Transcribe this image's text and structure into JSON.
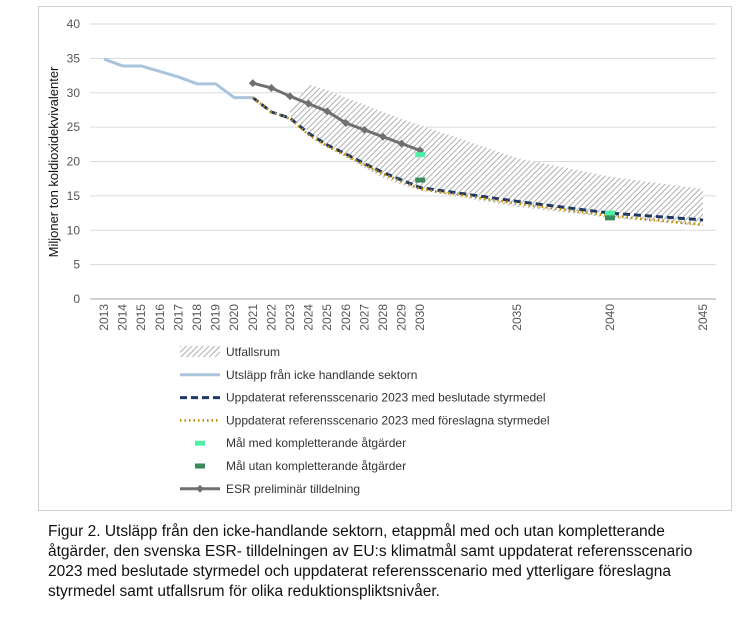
{
  "chart_data": {
    "type": "line",
    "ylabel": "Miljoner ton koldioxidekvivalenter",
    "ylim": [
      0,
      40
    ],
    "yticks": [
      0,
      5,
      10,
      15,
      20,
      25,
      30,
      35,
      40
    ],
    "xticks": [
      2013,
      2014,
      2015,
      2016,
      2017,
      2018,
      2019,
      2020,
      2021,
      2022,
      2023,
      2024,
      2025,
      2026,
      2027,
      2028,
      2029,
      2030,
      2035,
      2040,
      2045
    ],
    "grid": true,
    "legend_position": "bottom",
    "colors": {
      "range": "#9a9a9a",
      "historic": "#a9c4dc",
      "decided": "#1f3864",
      "proposed": "#bf8f00",
      "target_with": "#4ff0a6",
      "target_without": "#3a8a5c",
      "esr": "#707070"
    },
    "range_band": {
      "name": "Utfallsrum",
      "x": [
        2023,
        2024,
        2025,
        2026,
        2027,
        2028,
        2029,
        2030,
        2035,
        2040,
        2045
      ],
      "upper": [
        27.5,
        31.2,
        30.4,
        29.3,
        28.3,
        27.2,
        26.2,
        25.3,
        20.5,
        17.8,
        16
      ],
      "lower": [
        26.6,
        24.3,
        22.2,
        20.6,
        19,
        17.6,
        16.6,
        15.8,
        13.4,
        11.8,
        10.6
      ]
    },
    "series": [
      {
        "name": "Utsläpp från icke handlande sektorn",
        "x": [
          2013,
          2014,
          2015,
          2016,
          2017,
          2018,
          2019,
          2020,
          2021
        ],
        "values": [
          34.9,
          33.9,
          33.9,
          33.1,
          32.3,
          31.3,
          31.3,
          29.3,
          29.3
        ]
      },
      {
        "name": "Uppdaterat referensscenario 2023 med beslutade styrmedel",
        "x": [
          2021,
          2022,
          2023,
          2024,
          2025,
          2026,
          2027,
          2028,
          2029,
          2030,
          2035,
          2040,
          2045
        ],
        "values": [
          29.3,
          27.2,
          26.3,
          24.1,
          22.4,
          21.1,
          19.7,
          18.4,
          17.3,
          16.2,
          14.2,
          12.5,
          11.5
        ]
      },
      {
        "name": "Uppdaterat referensscenario 2023 med föreslagna styrmedel",
        "x": [
          2021,
          2022,
          2023,
          2024,
          2025,
          2026,
          2027,
          2028,
          2029,
          2030,
          2035,
          2040,
          2045
        ],
        "values": [
          29.3,
          27.2,
          26.2,
          23.9,
          22.2,
          20.9,
          19.5,
          18.2,
          17.1,
          16.0,
          13.9,
          12.1,
          10.8
        ]
      },
      {
        "name": "ESR preliminär tilldelning",
        "x": [
          2021,
          2022,
          2023,
          2024,
          2025,
          2026,
          2027,
          2028,
          2029,
          2030
        ],
        "values": [
          31.4,
          30.7,
          29.5,
          28.4,
          27.3,
          25.6,
          24.6,
          23.6,
          22.6,
          21.6
        ]
      }
    ],
    "targets": [
      {
        "name": "Mål med kompletterande åtgärder",
        "x": [
          2030,
          2040
        ],
        "values": [
          21.0,
          12.5
        ]
      },
      {
        "name": "Mål  utan kompletterande åtgärder",
        "x": [
          2030,
          2040
        ],
        "values": [
          17.3,
          11.8
        ]
      }
    ],
    "legend": [
      {
        "key": "range",
        "label": "Utfallsrum"
      },
      {
        "key": "historic",
        "label": "Utsläpp från icke handlande sektorn"
      },
      {
        "key": "decided",
        "label": "Uppdaterat referensscenario 2023 med beslutade styrmedel"
      },
      {
        "key": "proposed",
        "label": "Uppdaterat referensscenario 2023 med föreslagna styrmedel"
      },
      {
        "key": "target_with",
        "label": "Mål med kompletterande åtgärder"
      },
      {
        "key": "target_without",
        "label": "Mål  utan kompletterande åtgärder"
      },
      {
        "key": "esr",
        "label": "ESR preliminär tilldelning"
      }
    ]
  },
  "caption": "Figur 2. Utsläpp från den icke-handlande sektorn, etappmål med och utan kompletterande åtgärder, den svenska ESR- tilldelningen av EU:s klimatmål samt uppdaterat referensscenario 2023 med beslutade styrmedel och uppdaterat referensscenario med ytterligare föreslagna styrmedel samt utfallsrum för olika reduktionspliktsnivåer."
}
